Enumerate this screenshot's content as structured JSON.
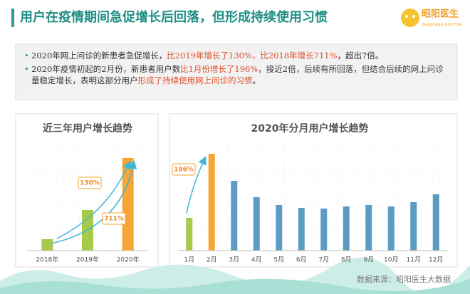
{
  "header": {
    "title": "用户在疫情期间急促增长后回落，但形成持续使用习惯"
  },
  "logo": {
    "name": "昭阳医生",
    "subtitle": "ZHAOYANG DOCTOR"
  },
  "bullets": [
    [
      {
        "text": "2020年网上问诊的新患者急促增长，",
        "highlight": false
      },
      {
        "text": "比2019年增长了130%，比2018年增长711%",
        "highlight": true
      },
      {
        "text": "，超出7倍。",
        "highlight": false
      }
    ],
    [
      {
        "text": "2020年疫情初起的2月份，新患者用户数",
        "highlight": false
      },
      {
        "text": "比1月份增长了196%",
        "highlight": true
      },
      {
        "text": "，接近2倍，后续有所回落，但结合后续的网上问诊量稳定增长，表明这部分用户",
        "highlight": false
      },
      {
        "text": "形成了持续使用网上问诊的习惯",
        "highlight": true
      },
      {
        "text": "。",
        "highlight": false
      }
    ]
  ],
  "chart_data": [
    {
      "type": "bar",
      "title": "近三年用户增长趋势",
      "categories": [
        "2018年",
        "2019年",
        "2020年"
      ],
      "values": [
        16,
        57,
        130
      ],
      "colors": [
        "#a9c94a",
        "#a9c94a",
        "#f7a535"
      ],
      "annotations": [
        "130%",
        "711%"
      ],
      "grid": true
    },
    {
      "type": "bar",
      "title": "2020年分月用户增长趋势",
      "categories": [
        "1月",
        "2月",
        "3月",
        "4月",
        "5月",
        "6月",
        "7月",
        "8月",
        "9月",
        "10月",
        "11月",
        "12月"
      ],
      "values": [
        46,
        136,
        98,
        75,
        64,
        60,
        59,
        62,
        64,
        62,
        68,
        79
      ],
      "colors": [
        "#a9c94a",
        "#f7a535",
        "#5b9bc4",
        "#5b9bc4",
        "#5b9bc4",
        "#5b9bc4",
        "#5b9bc4",
        "#5b9bc4",
        "#5b9bc4",
        "#5b9bc4",
        "#5b9bc4",
        "#5b9bc4"
      ],
      "annotations": [
        "196%"
      ],
      "grid": true
    }
  ],
  "source": "数据来源：昭阳医生大数据"
}
